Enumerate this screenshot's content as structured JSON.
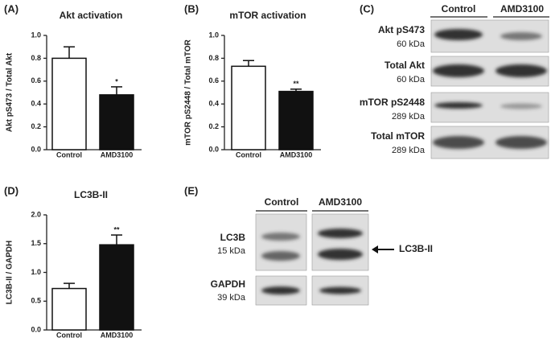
{
  "chart_data": [
    {
      "type": "bar",
      "panel_label": "(A)",
      "title": "Akt activation",
      "y_label": "Akt pS473 / Total Akt",
      "categories": [
        "Control",
        "AMD3100"
      ],
      "values": [
        0.8,
        0.48
      ],
      "errors": [
        0.1,
        0.07
      ],
      "colors": [
        "#ffffff",
        "#111111"
      ],
      "significance": [
        null,
        "*"
      ],
      "ylim": [
        0,
        1.0
      ],
      "yticks": [
        {
          "value": 0,
          "label": "0.0"
        },
        0.2,
        0.4,
        0.6,
        0.8,
        {
          "value": 1.0,
          "label": "1.0"
        }
      ]
    },
    {
      "type": "bar",
      "panel_label": "(B)",
      "title": "mTOR activation",
      "y_label": "mTOR pS2448 / Total mTOR",
      "categories": [
        "Control",
        "AMD3100"
      ],
      "values": [
        0.73,
        0.51
      ],
      "errors": [
        0.05,
        0.02
      ],
      "colors": [
        "#ffffff",
        "#111111"
      ],
      "significance": [
        null,
        "**"
      ],
      "ylim": [
        0,
        1.0
      ],
      "yticks": [
        {
          "value": 0,
          "label": "0.0"
        },
        0.2,
        0.4,
        0.6,
        0.8,
        {
          "value": 1.0,
          "label": "1.0"
        }
      ]
    },
    {
      "type": "bar",
      "panel_label": "(D)",
      "title": "LC3B-II",
      "y_label": "LC3B-II / GAPDH",
      "categories": [
        "Control",
        "AMD3100"
      ],
      "values": [
        0.72,
        1.48
      ],
      "errors": [
        0.09,
        0.17
      ],
      "colors": [
        "#ffffff",
        "#111111"
      ],
      "significance": [
        null,
        "**"
      ],
      "ylim": [
        0,
        2.0
      ],
      "yticks": [
        {
          "value": 0,
          "label": "0.0"
        },
        0.5,
        {
          "value": 1.0,
          "label": "1.0"
        },
        1.5,
        {
          "value": 2.0,
          "label": "2.0"
        }
      ]
    }
  ],
  "blot_c": {
    "panel_label": "(C)",
    "columns": [
      "Control",
      "AMD3100"
    ],
    "rows": [
      {
        "name": "Akt pS473",
        "size": "60 kDa"
      },
      {
        "name": "Total Akt",
        "size": "60 kDa"
      },
      {
        "name": "mTOR pS2448",
        "size": "289 kDa"
      },
      {
        "name": "Total mTOR",
        "size": "289 kDa"
      }
    ]
  },
  "blot_e": {
    "panel_label": "(E)",
    "columns": [
      "Control",
      "AMD3100"
    ],
    "rows": [
      {
        "name": "LC3B",
        "size": "15 kDa"
      },
      {
        "name": "GAPDH",
        "size": "39 kDa"
      }
    ],
    "arrow_label": "LC3B-II"
  }
}
